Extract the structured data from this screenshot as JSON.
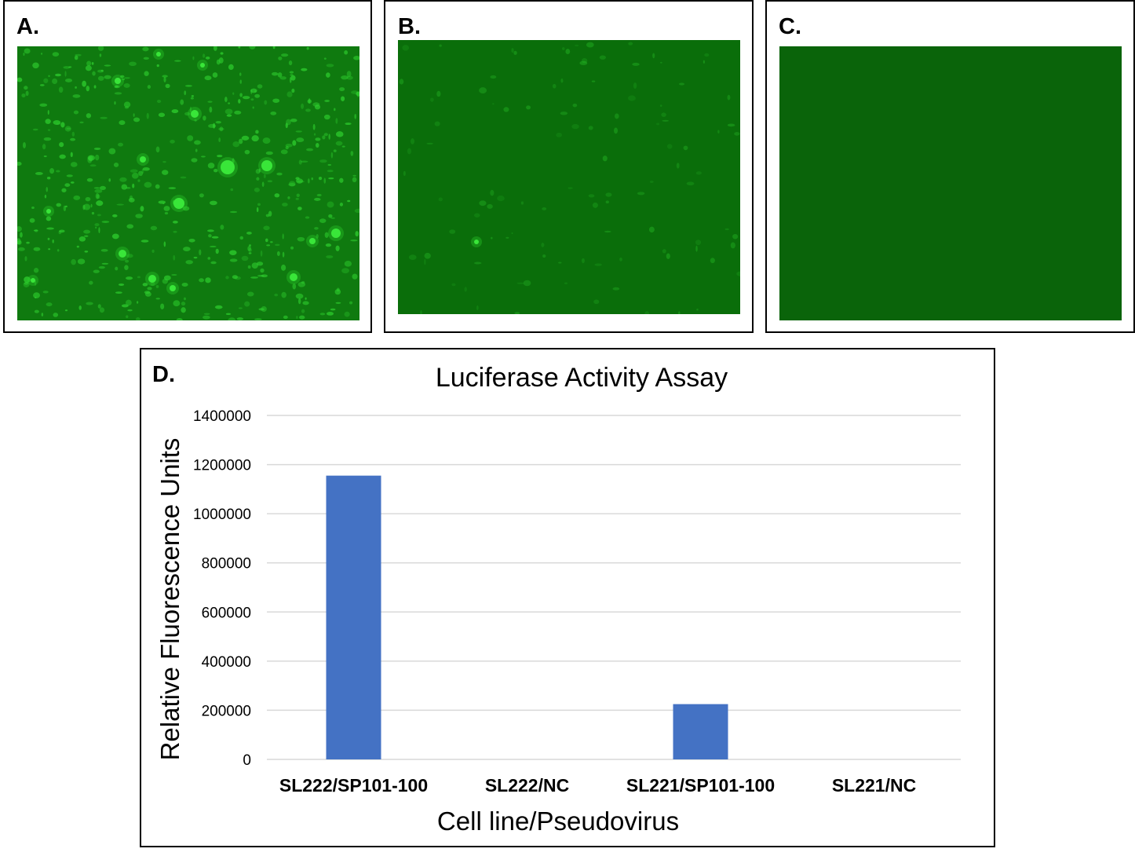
{
  "panels": {
    "a": {
      "label": "A."
    },
    "b": {
      "label": "B."
    },
    "c": {
      "label": "C."
    },
    "d": {
      "label": "D."
    }
  },
  "colors": {
    "bar": "#4472c4",
    "grid": "#d9d9d9",
    "micro_a_bg": "#0f7a0f",
    "micro_b_bg": "#0a6e0a",
    "micro_c_bg": "#0a640a",
    "cell_bright": "#39e639"
  },
  "chart_data": {
    "type": "bar",
    "title": "Luciferase Activity Assay",
    "xlabel": "Cell line/Pseudovirus",
    "ylabel": "Relative Fluorescence Units",
    "categories": [
      "SL222/SP101-100",
      "SL222/NC",
      "SL221/SP101-100",
      "SL221/NC"
    ],
    "values": [
      1155000,
      0,
      225000,
      0
    ],
    "ylim": [
      0,
      1400000
    ],
    "yticks": [
      0,
      200000,
      400000,
      600000,
      800000,
      1000000,
      1200000,
      1400000
    ],
    "ytick_labels": [
      "0",
      "200000",
      "400000",
      "600000",
      "800000",
      "1000000",
      "1200000",
      "1400000"
    ],
    "grid": true,
    "legend": "none"
  }
}
